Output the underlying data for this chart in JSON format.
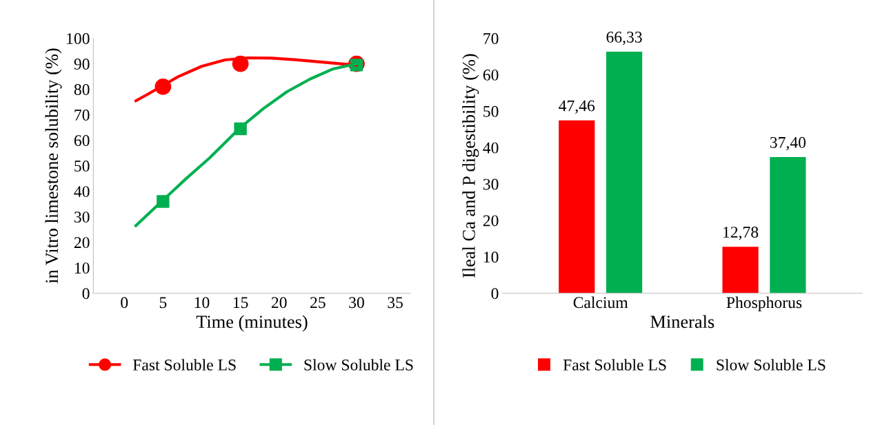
{
  "chart_data": [
    {
      "type": "scatter",
      "xlabel": "Time (minutes)",
      "ylabel": "in Vitro limestone solubility (%)",
      "xlim": [
        -4,
        37
      ],
      "xticks": [
        0,
        5,
        10,
        15,
        20,
        25,
        30,
        35
      ],
      "ylim": [
        0,
        100
      ],
      "yticks": [
        0,
        10,
        20,
        30,
        40,
        50,
        60,
        70,
        80,
        90,
        100
      ],
      "grid": false,
      "legend": "bottom",
      "series": [
        {
          "name": "Fast Soluble LS",
          "color": "#ff0000",
          "type": "scatter",
          "marker": "circle",
          "x": [
            5,
            15,
            30
          ],
          "values": [
            81,
            90,
            90
          ]
        },
        {
          "name": "Slow Soluble LS",
          "color": "#00b050",
          "type": "scatter",
          "marker": "square",
          "x": [
            5,
            15,
            30
          ],
          "values": [
            36,
            64.5,
            89.5
          ]
        },
        {
          "color": "#ff0000",
          "type": "line",
          "line_style": "solid",
          "x": [
            1.5,
            3,
            5,
            7,
            10,
            13,
            16,
            19,
            22,
            25,
            28,
            30
          ],
          "values": [
            75.5,
            78,
            81.5,
            85,
            89,
            91.5,
            92.3,
            92.2,
            91.6,
            90.8,
            90,
            89.5
          ]
        },
        {
          "color": "#00b050",
          "type": "line",
          "line_style": "solid",
          "x": [
            1.5,
            5,
            8,
            11,
            15,
            18,
            21,
            24,
            27,
            30
          ],
          "values": [
            26.5,
            36.5,
            45,
            53,
            65,
            72.5,
            79,
            84,
            88,
            90
          ]
        }
      ]
    },
    {
      "type": "bar",
      "xlabel": "Minerals",
      "ylabel": "Ileal Ca and P digestibility (%)",
      "categories": [
        "Calcium",
        "Phosphorus"
      ],
      "ylim": [
        0,
        70
      ],
      "yticks": [
        0,
        10,
        20,
        30,
        40,
        50,
        60,
        70
      ],
      "grid": false,
      "legend": "bottom",
      "series": [
        {
          "name": "Fast Soluble LS",
          "color": "#ff0000",
          "values": [
            47.46,
            12.78
          ],
          "value_labels": [
            "47,46",
            "12,78"
          ]
        },
        {
          "name": "Slow Soluble LS",
          "color": "#00b050",
          "values": [
            66.33,
            37.4
          ],
          "value_labels": [
            "66,33",
            "37,40"
          ]
        }
      ]
    }
  ]
}
